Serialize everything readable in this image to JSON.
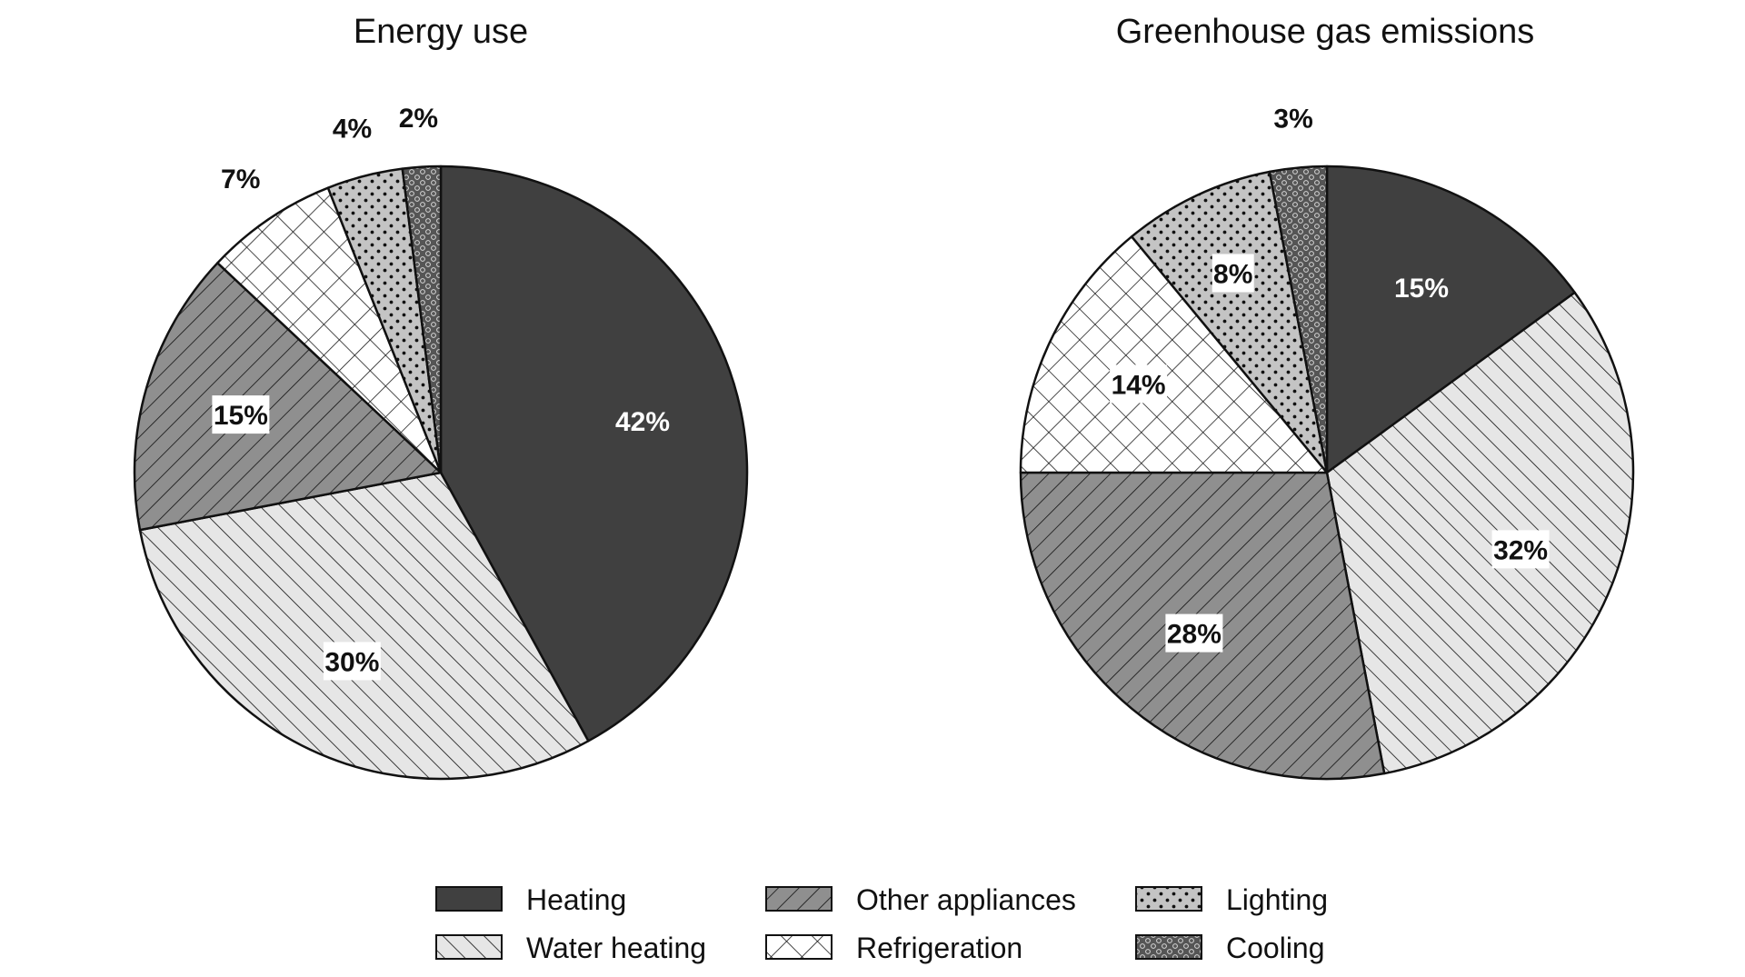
{
  "chart_data": [
    {
      "type": "pie",
      "title": "Energy use",
      "slices": [
        {
          "category": "Heating",
          "value": 42,
          "label": "42%"
        },
        {
          "category": "Water heating",
          "value": 30,
          "label": "30%"
        },
        {
          "category": "Other appliances",
          "value": 15,
          "label": "15%"
        },
        {
          "category": "Refrigeration",
          "value": 7,
          "label": "7%"
        },
        {
          "category": "Lighting",
          "value": 4,
          "label": "4%"
        },
        {
          "category": "Cooling",
          "value": 2,
          "label": "2%"
        }
      ],
      "start": "12 o'clock",
      "direction": "clockwise"
    },
    {
      "type": "pie",
      "title": "Greenhouse gas emissions",
      "slices": [
        {
          "category": "Heating",
          "value": 15,
          "label": "15%"
        },
        {
          "category": "Water heating",
          "value": 32,
          "label": "32%"
        },
        {
          "category": "Other appliances",
          "value": 28,
          "label": "28%"
        },
        {
          "category": "Refrigeration",
          "value": 14,
          "label": "14%"
        },
        {
          "category": "Lighting",
          "value": 8,
          "label": "8%"
        },
        {
          "category": "Cooling",
          "value": 3,
          "label": "3%"
        }
      ],
      "start": "12 o'clock",
      "direction": "clockwise"
    }
  ],
  "legend": {
    "placement": "bottom-center",
    "items": [
      {
        "label": "Heating",
        "pattern": "solid-dark"
      },
      {
        "label": "Other appliances",
        "pattern": "back-diagonal-hatch"
      },
      {
        "label": "Lighting",
        "pattern": "dots"
      },
      {
        "label": "Water heating",
        "pattern": "forward-diagonal-hatch"
      },
      {
        "label": "Refrigeration",
        "pattern": "crosshatch"
      },
      {
        "label": "Cooling",
        "pattern": "dark-dots"
      }
    ]
  },
  "colors": {
    "heating": "#404040",
    "water_heating": "#e6e6e6",
    "other_appliances": "#8f8f8f",
    "refrigeration": "#ffffff",
    "lighting": "#c4c4c4",
    "cooling": "#555555",
    "outline": "#111111",
    "label_box": "#ffffff"
  }
}
